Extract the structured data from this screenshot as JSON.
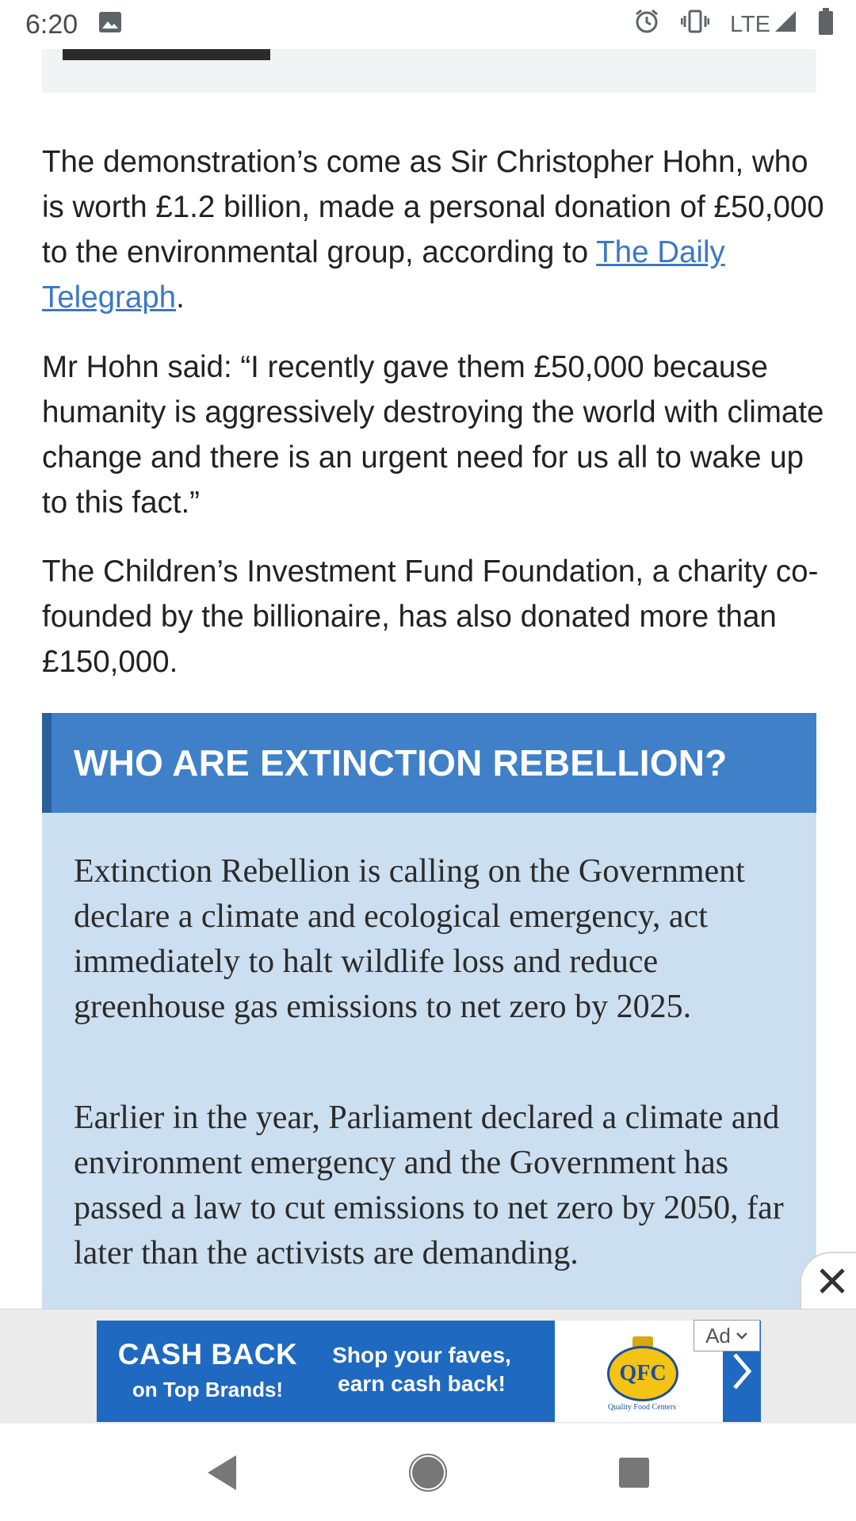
{
  "status_bar": {
    "time": "6:20",
    "network": "LTE",
    "icons": [
      "image-icon",
      "alarm-icon",
      "vibrate-icon",
      "signal-icon",
      "battery-icon"
    ]
  },
  "article": {
    "paragraphs": {
      "p1_before": "The demonstration’s come as Sir Christopher Hohn, who is worth £1.2 billion, made a personal donation of £50,000 to the environmental group, according to ",
      "p1_link": "The Daily Telegraph",
      "p1_after": ".",
      "p2": "Mr Hohn said: “I recently gave them £50,000 because humanity is aggressively destroying the world with climate change and there is an urgent need for us all to wake up to this fact.”",
      "p3": "The Children’s Investment Fund Foundation, a charity co-founded by the billionaire, has also donated more than £150,000."
    },
    "factbox": {
      "title": "WHO ARE EXTINCTION REBELLION?",
      "p1": "Extinction Rebellion is calling on the Government declare a climate and ecological emergency, act immediately to halt wildlife loss and reduce greenhouse gas emissions to net zero by 2025.",
      "p2": "Earlier in the year, Parliament declared a climate and environment emergency and the Government has passed a law to cut emissions to net zero by 2050, far later than the activists are demanding."
    }
  },
  "ad": {
    "headline": "CASH BACK",
    "subline": "on Top Brands!",
    "tag1": "Shop your faves,",
    "tag2": "earn cash back!",
    "logo_text": "QFC",
    "logo_sub": "Quality Food Centers",
    "label": "Ad",
    "colors": {
      "banner": "#1f69c0",
      "logo_yellow": "#f3c316",
      "logo_blue": "#1d4f9a"
    }
  },
  "nav": {
    "icons": [
      "back-icon",
      "home-icon",
      "recents-icon"
    ]
  },
  "colors": {
    "link": "#3b78c7",
    "factbox_header": "#3f80c8",
    "factbox_body": "#ccdff0"
  }
}
